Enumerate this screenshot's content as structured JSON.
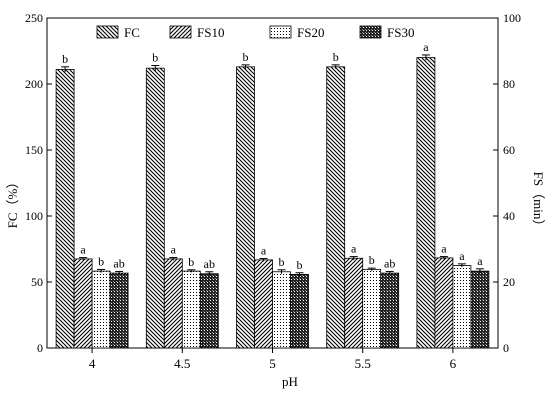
{
  "chart_data": {
    "type": "bar",
    "xlabel": "pH",
    "ylabel_left": "FC（%）",
    "ylabel_right": "FS（min）",
    "categories": [
      "4",
      "4.5",
      "5",
      "5.5",
      "6"
    ],
    "left_axis": {
      "ylim": [
        0,
        250
      ],
      "ticks": [
        0,
        50,
        100,
        150,
        200,
        250
      ]
    },
    "right_axis": {
      "ylim": [
        0,
        100
      ],
      "ticks": [
        0,
        20,
        40,
        60,
        80,
        100
      ]
    },
    "legend_position": "top",
    "series": [
      {
        "name": "FC",
        "axis": "left",
        "pattern": "diag-down",
        "values": [
          211,
          212,
          213,
          213,
          220
        ],
        "errors": [
          2,
          2,
          1.5,
          1.5,
          2
        ],
        "labels": [
          "b",
          "b",
          "b",
          "b",
          "a"
        ]
      },
      {
        "name": "FS10",
        "axis": "right",
        "pattern": "diag-up",
        "values": [
          27,
          27,
          26.7,
          27.2,
          27.3
        ],
        "errors": [
          0.4,
          0.4,
          0.4,
          0.5,
          0.4
        ],
        "labels": [
          "a",
          "a",
          "a",
          "a",
          "a"
        ]
      },
      {
        "name": "FS20",
        "axis": "right",
        "pattern": "dots",
        "values": [
          23.3,
          23.3,
          23.1,
          23.8,
          25
        ],
        "errors": [
          0.5,
          0.4,
          0.6,
          0.4,
          0.5
        ],
        "labels": [
          "b",
          "b",
          "b",
          "b",
          "a"
        ]
      },
      {
        "name": "FS30",
        "axis": "right",
        "pattern": "dense",
        "values": [
          22.7,
          22.5,
          22.3,
          22.7,
          23.3
        ],
        "errors": [
          0.5,
          0.6,
          0.5,
          0.5,
          0.7
        ],
        "labels": [
          "ab",
          "ab",
          "b",
          "ab",
          "a"
        ]
      }
    ]
  }
}
